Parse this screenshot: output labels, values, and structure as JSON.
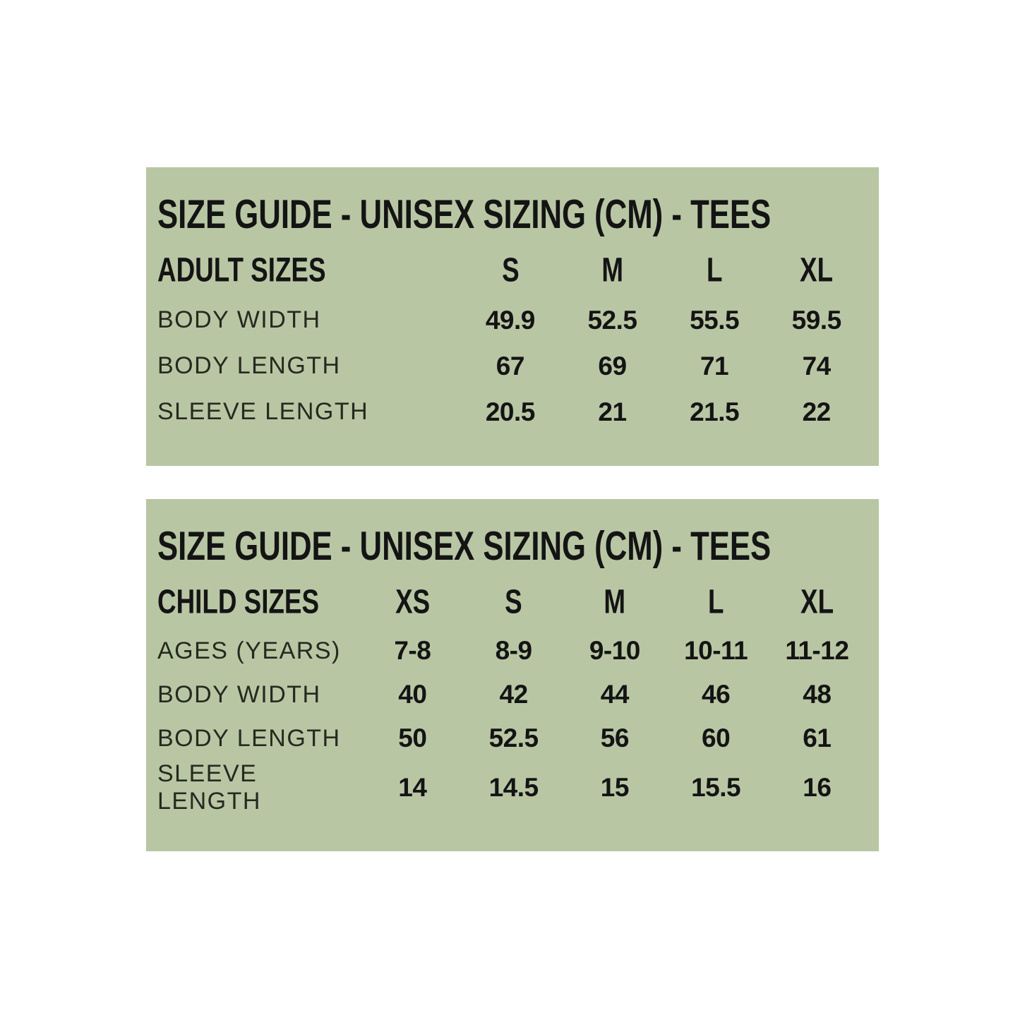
{
  "page": {
    "background_color": "#ffffff",
    "panel_color": "#b8c6a4",
    "text_color": "#141414"
  },
  "tables": [
    {
      "title": "SIZE GUIDE - UNISEX SIZING (CM) - TEES",
      "header": {
        "label": "ADULT SIZES",
        "columns": [
          "S",
          "M",
          "L",
          "XL"
        ]
      },
      "rows": [
        {
          "label": "BODY WIDTH",
          "values": [
            "49.9",
            "52.5",
            "55.5",
            "59.5"
          ]
        },
        {
          "label": "BODY LENGTH",
          "values": [
            "67",
            "69",
            "71",
            "74"
          ]
        },
        {
          "label": "SLEEVE LENGTH",
          "values": [
            "20.5",
            "21",
            "21.5",
            "22"
          ]
        }
      ]
    },
    {
      "title": "SIZE GUIDE - UNISEX SIZING (CM) - TEES",
      "header": {
        "label": "CHILD SIZES",
        "columns": [
          "XS",
          "S",
          "M",
          "L",
          "XL"
        ]
      },
      "rows": [
        {
          "label": "AGES (YEARS)",
          "values": [
            "7-8",
            "8-9",
            "9-10",
            "10-11",
            "11-12"
          ]
        },
        {
          "label": "BODY WIDTH",
          "values": [
            "40",
            "42",
            "44",
            "46",
            "48"
          ]
        },
        {
          "label": "BODY LENGTH",
          "values": [
            "50",
            "52.5",
            "56",
            "60",
            "61"
          ]
        },
        {
          "label": "SLEEVE LENGTH",
          "values": [
            "14",
            "14.5",
            "15",
            "15.5",
            "16"
          ]
        }
      ]
    }
  ]
}
